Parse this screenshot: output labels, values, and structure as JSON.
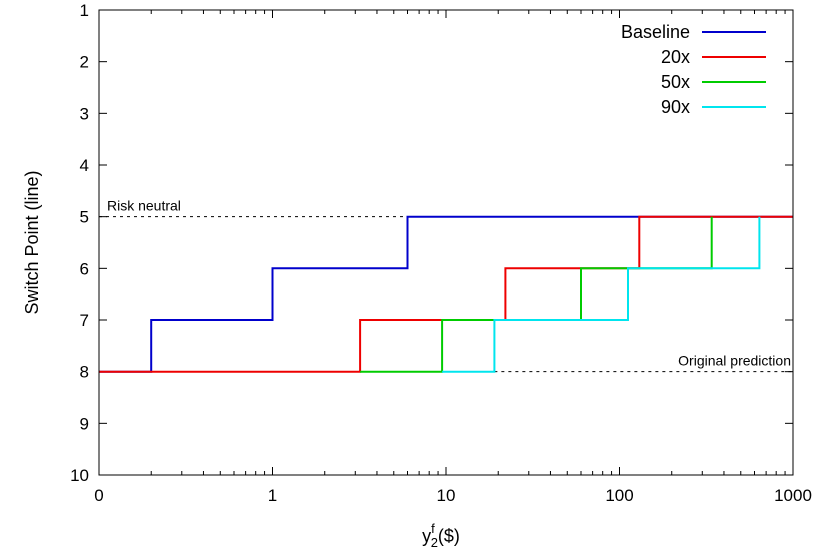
{
  "chart_data": {
    "type": "line",
    "step": true,
    "xlabel_main": "y",
    "xlabel_sub": "2",
    "xlabel_sup": "f",
    "xlabel_unit": "($)",
    "ylabel": "Switch Point (line)",
    "x_scale": "log",
    "x_ticks": [
      {
        "label": "0",
        "value": 0.1
      },
      {
        "label": "1",
        "value": 1
      },
      {
        "label": "10",
        "value": 10
      },
      {
        "label": "100",
        "value": 100
      },
      {
        "label": "1000",
        "value": 1000
      }
    ],
    "xlim": [
      0.1,
      1000
    ],
    "y_ticks": [
      "1",
      "2",
      "3",
      "4",
      "5",
      "6",
      "7",
      "8",
      "9",
      "10"
    ],
    "ylim": [
      10,
      1
    ],
    "y_inverted": true,
    "legend_position": "top-right",
    "series": [
      {
        "name": "Baseline",
        "color": "#0000cc",
        "points": [
          [
            0.1,
            8
          ],
          [
            0.2,
            8
          ],
          [
            0.2,
            7
          ],
          [
            1,
            7
          ],
          [
            1,
            6
          ],
          [
            6,
            6
          ],
          [
            6,
            5
          ],
          [
            1000,
            5
          ]
        ]
      },
      {
        "name": "20x",
        "color": "#ee0000",
        "points": [
          [
            0.1,
            8
          ],
          [
            3.2,
            8
          ],
          [
            3.2,
            7
          ],
          [
            22,
            7
          ],
          [
            22,
            6
          ],
          [
            130,
            6
          ],
          [
            130,
            5
          ],
          [
            1000,
            5
          ]
        ]
      },
      {
        "name": "50x",
        "color": "#00cc00",
        "points": [
          [
            3.2,
            8
          ],
          [
            9.5,
            8
          ],
          [
            9.5,
            7
          ],
          [
            22,
            7
          ],
          [
            60,
            7
          ],
          [
            60,
            6
          ],
          [
            130,
            6
          ],
          [
            340,
            6
          ],
          [
            340,
            5
          ]
        ]
      },
      {
        "name": "90x",
        "color": "#00e5ee",
        "points": [
          [
            9.5,
            8
          ],
          [
            19,
            8
          ],
          [
            19,
            7
          ],
          [
            60,
            7
          ],
          [
            112,
            7
          ],
          [
            112,
            6
          ],
          [
            340,
            6
          ],
          [
            640,
            6
          ],
          [
            640,
            5
          ]
        ]
      }
    ],
    "annotations": [
      {
        "text": "Risk neutral",
        "y": 5,
        "line_from": 0.1,
        "line_to": 6
      },
      {
        "text": "Original prediction",
        "y": 8,
        "line_from": 19,
        "line_to": 1000
      }
    ]
  }
}
